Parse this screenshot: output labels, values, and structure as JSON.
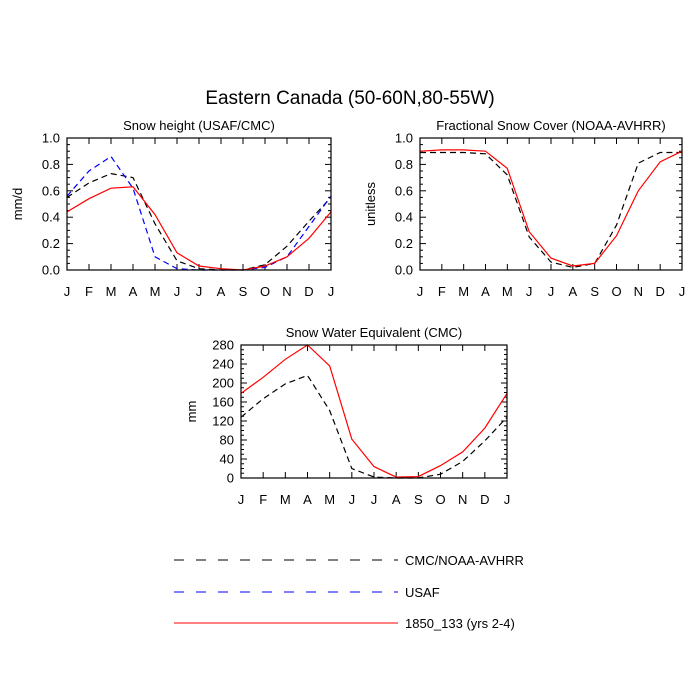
{
  "figure": {
    "title": "Eastern Canada (50-60N,80-55W)"
  },
  "months": [
    "J",
    "F",
    "M",
    "A",
    "M",
    "J",
    "J",
    "A",
    "S",
    "O",
    "N",
    "D",
    "J"
  ],
  "colors": {
    "cmc": "#000000",
    "usaf": "#0000ff",
    "model": "#ff0000"
  },
  "chart_data": [
    {
      "type": "line",
      "title": "Snow height (USAF/CMC)",
      "xlabel": "",
      "ylabel": "mm/d",
      "categories": [
        "J",
        "F",
        "M",
        "A",
        "M",
        "J",
        "J",
        "A",
        "S",
        "O",
        "N",
        "D",
        "J"
      ],
      "ylim": [
        0,
        1.0
      ],
      "yticks": [
        0.0,
        0.2,
        0.4,
        0.6,
        0.8,
        1.0
      ],
      "ytick_labels": [
        "0.0",
        "0.2",
        "0.4",
        "0.6",
        "0.8",
        "1.0"
      ],
      "series": [
        {
          "name": "CMC/NOAA-AVHRR",
          "style": "dash",
          "color": "#000000",
          "values": [
            0.55,
            0.66,
            0.73,
            0.7,
            0.35,
            0.07,
            0.01,
            0.0,
            0.0,
            0.04,
            0.18,
            0.37,
            0.55
          ]
        },
        {
          "name": "USAF",
          "style": "dash",
          "color": "#0000ff",
          "values": [
            0.56,
            0.75,
            0.86,
            0.62,
            0.1,
            0.01,
            0.0,
            0.0,
            0.0,
            0.02,
            0.1,
            0.33,
            0.56
          ]
        },
        {
          "name": "1850_133 (yrs 2-4)",
          "style": "solid",
          "color": "#ff0000",
          "values": [
            0.44,
            0.54,
            0.62,
            0.63,
            0.42,
            0.13,
            0.03,
            0.01,
            0.0,
            0.03,
            0.1,
            0.24,
            0.44
          ]
        }
      ]
    },
    {
      "type": "line",
      "title": "Fractional Snow Cover (NOAA-AVHRR)",
      "xlabel": "",
      "ylabel": "unitless",
      "categories": [
        "J",
        "F",
        "M",
        "A",
        "M",
        "J",
        "J",
        "A",
        "S",
        "O",
        "N",
        "D",
        "J"
      ],
      "ylim": [
        0,
        1.0
      ],
      "yticks": [
        0.0,
        0.2,
        0.4,
        0.6,
        0.8,
        1.0
      ],
      "ytick_labels": [
        "0.0",
        "0.2",
        "0.4",
        "0.6",
        "0.8",
        "1.0"
      ],
      "series": [
        {
          "name": "CMC/NOAA-AVHRR",
          "style": "dash",
          "color": "#000000",
          "values": [
            0.89,
            0.89,
            0.89,
            0.88,
            0.72,
            0.25,
            0.06,
            0.02,
            0.05,
            0.34,
            0.81,
            0.89,
            0.89
          ]
        },
        {
          "name": "1850_133 (yrs 2-4)",
          "style": "solid",
          "color": "#ff0000",
          "values": [
            0.9,
            0.91,
            0.91,
            0.9,
            0.77,
            0.29,
            0.09,
            0.03,
            0.05,
            0.26,
            0.6,
            0.82,
            0.9
          ]
        }
      ]
    },
    {
      "type": "line",
      "title": "Snow Water Equivalent (CMC)",
      "xlabel": "",
      "ylabel": "mm",
      "categories": [
        "J",
        "F",
        "M",
        "A",
        "M",
        "J",
        "J",
        "A",
        "S",
        "O",
        "N",
        "D",
        "J"
      ],
      "ylim": [
        0,
        280
      ],
      "yticks": [
        0,
        40,
        80,
        120,
        160,
        200,
        240,
        280
      ],
      "ytick_labels": [
        "0",
        "40",
        "80",
        "120",
        "160",
        "200",
        "240",
        "280"
      ],
      "series": [
        {
          "name": "CMC/NOAA-AVHRR",
          "style": "dash",
          "color": "#000000",
          "values": [
            128,
            167,
            198,
            216,
            142,
            20,
            2,
            0,
            0,
            8,
            35,
            78,
            128
          ]
        },
        {
          "name": "1850_133 (yrs 2-4)",
          "style": "solid",
          "color": "#ff0000",
          "values": [
            178,
            212,
            250,
            280,
            236,
            82,
            24,
            2,
            3,
            26,
            55,
            105,
            178
          ]
        }
      ]
    }
  ],
  "legend": [
    {
      "label": "CMC/NOAA-AVHRR",
      "style": "dash",
      "color": "#000000"
    },
    {
      "label": "USAF",
      "style": "dash",
      "color": "#0000ff"
    },
    {
      "label": "1850_133 (yrs 2-4)",
      "style": "solid",
      "color": "#ff0000"
    }
  ]
}
